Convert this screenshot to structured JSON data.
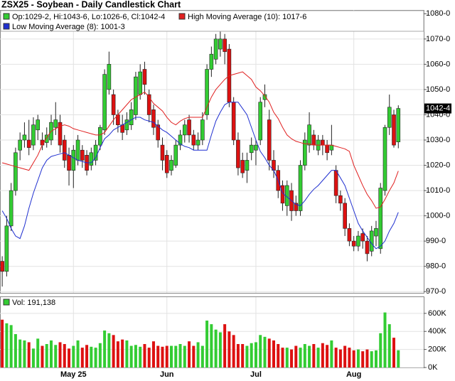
{
  "chart_data": {
    "type": "candlestick",
    "title": "ZSX25 - Soybean - Daily Candlestick Chart",
    "ohlc_label": "Op:1029-2, Hi:1043-6, Lo:1026-6, Cl:1042-4",
    "last_price_label": "1042-4",
    "up_color": "#33cc33",
    "down_color": "#dd1111",
    "grid": true,
    "categories": [
      null,
      null,
      null,
      null,
      null,
      null,
      null,
      null,
      null,
      null,
      null,
      null,
      null,
      null,
      null,
      null,
      "May 25",
      null,
      null,
      null,
      null,
      null,
      null,
      null,
      null,
      null,
      null,
      null,
      null,
      null,
      null,
      null,
      null,
      null,
      null,
      null,
      null,
      "Jun",
      null,
      null,
      null,
      null,
      null,
      null,
      null,
      null,
      null,
      null,
      null,
      null,
      null,
      null,
      null,
      null,
      null,
      null,
      null,
      "Jul",
      null,
      null,
      null,
      null,
      null,
      null,
      null,
      null,
      null,
      null,
      null,
      null,
      null,
      null,
      null,
      null,
      null,
      null,
      null,
      null,
      null,
      "Aug",
      null,
      null,
      null,
      null,
      null,
      null,
      null,
      null,
      null,
      null
    ],
    "open": [
      982,
      978,
      996,
      1010,
      1026,
      1030,
      1030,
      1028,
      1034,
      1030,
      1029,
      1030,
      1035,
      1037,
      1030,
      1024,
      1018,
      1022,
      1026,
      1024,
      1020,
      1022,
      1028,
      1034,
      1050,
      1048,
      1040,
      1036,
      1034,
      1036,
      1040,
      1048,
      1058,
      1048,
      1042,
      1036,
      1028,
      1024,
      1018,
      1020,
      1028,
      1032,
      1038,
      1032,
      1028,
      1030,
      1040,
      1058,
      1062,
      1066,
      1070,
      1066,
      1045,
      1030,
      1022,
      1018,
      1025,
      1026,
      1030,
      1046,
      1038,
      1022,
      1018,
      1012,
      1004,
      1010,
      1005,
      1002,
      1020,
      1028,
      1032,
      1026,
      1030,
      1028,
      1026,
      1018,
      1008,
      1005,
      995,
      990,
      988,
      993,
      990,
      986,
      992,
      987,
      1010,
      1035,
      1040,
      1029.25
    ],
    "high": [
      984,
      1000,
      1013,
      1027,
      1033,
      1037,
      1038,
      1039,
      1040,
      1033,
      1035,
      1040,
      1045,
      1040,
      1032,
      1027,
      1028,
      1032,
      1028,
      1026,
      1027,
      1030,
      1036,
      1058,
      1065,
      1050,
      1042,
      1040,
      1041,
      1045,
      1057,
      1060,
      1061,
      1050,
      1044,
      1038,
      1031,
      1026,
      1024,
      1030,
      1034,
      1038,
      1040,
      1034,
      1033,
      1041,
      1060,
      1067,
      1072,
      1074,
      1072,
      1068,
      1047,
      1033,
      1025,
      1025,
      1031,
      1030,
      1047,
      1052,
      1042,
      1026,
      1020,
      1014,
      1014,
      1013,
      1008,
      1022,
      1033,
      1041,
      1034,
      1032,
      1032,
      1030,
      1036,
      1020,
      1010,
      1007,
      997,
      992,
      994,
      995,
      992,
      996,
      998,
      1013,
      1036,
      1048,
      1042,
      1043.75
    ],
    "low": [
      972,
      976,
      994,
      1008,
      1022,
      1027,
      1024,
      1026,
      1030,
      1026,
      1027,
      1028,
      1032,
      1025,
      1019,
      1012,
      1011,
      1020,
      1019,
      1016,
      1018,
      1020,
      1026,
      1032,
      1048,
      1036,
      1033,
      1030,
      1032,
      1034,
      1038,
      1046,
      1048,
      1037,
      1032,
      1027,
      1018,
      1015,
      1016,
      1019,
      1026,
      1029,
      1029,
      1026,
      1026,
      1028,
      1038,
      1055,
      1060,
      1063,
      1060,
      1043,
      1028,
      1016,
      1015,
      1013,
      1022,
      1020,
      1028,
      1043,
      1018,
      1015,
      1007,
      1002,
      1000,
      998,
      1000,
      1000,
      1018,
      1025,
      1026,
      1024,
      1024,
      1022,
      1024,
      1005,
      1002,
      992,
      988,
      986,
      986,
      987,
      982,
      984,
      988,
      985,
      1008,
      1032,
      1027,
      1026.75
    ],
    "close": [
      978,
      996,
      1010,
      1025,
      1030,
      1032,
      1027,
      1036,
      1038,
      1028,
      1032,
      1037,
      1038,
      1028,
      1022,
      1018,
      1026,
      1030,
      1022,
      1018,
      1025,
      1028,
      1035,
      1056,
      1060,
      1040,
      1036,
      1033,
      1038,
      1042,
      1055,
      1057,
      1052,
      1040,
      1035,
      1030,
      1022,
      1017,
      1022,
      1028,
      1032,
      1036,
      1032,
      1028,
      1030,
      1038,
      1058,
      1064,
      1070,
      1070,
      1065,
      1045,
      1030,
      1019,
      1017,
      1022,
      1028,
      1028,
      1045,
      1048,
      1022,
      1018,
      1010,
      1005,
      1012,
      1002,
      1002,
      1020,
      1030,
      1036,
      1028,
      1030,
      1028,
      1025,
      1028,
      1008,
      1005,
      995,
      990,
      988,
      992,
      990,
      985,
      994,
      995,
      1011,
      1035,
      1043,
      1028,
      1042.5
    ],
    "series": [
      {
        "name": "High Moving Average (10): 1017-6",
        "color": "#e02020",
        "values": [
          1021,
          1020.5,
          1020,
          1019.5,
          1019,
          1018.5,
          1018,
          1021,
          1024,
          1028,
          1031,
          1033.5,
          1034.5,
          1035.5,
          1036,
          1035.5,
          1034.5,
          1034,
          1033.5,
          1033,
          1032.5,
          1032,
          1032,
          1033,
          1035.5,
          1038,
          1040,
          1042,
          1044,
          1046,
          1047,
          1048,
          1049,
          1047,
          1044.5,
          1043,
          1041.5,
          1039,
          1037,
          1036,
          1037.5,
          1038.5,
          1039,
          1039,
          1039,
          1039,
          1043,
          1047,
          1050,
          1052,
          1054,
          1055.5,
          1056,
          1056.5,
          1057,
          1055.5,
          1054,
          1051,
          1049.5,
          1047.5,
          1045,
          1041,
          1038.5,
          1035,
          1032,
          1030.5,
          1029.5,
          1029,
          1028.5,
          1028.5,
          1028,
          1028,
          1028,
          1028,
          1028,
          1027.5,
          1027,
          1026.5,
          1025.5,
          1020,
          1016,
          1012,
          1008.5,
          1006,
          1003,
          1003.5,
          1006.5,
          1010,
          1013,
          1017.75
        ]
      },
      {
        "name": "Low Moving Average (8): 1001-3",
        "color": "#1f2fd0",
        "values": [
          1002,
          999,
          995,
          992,
          991,
          996,
          1003,
          1009,
          1014,
          1019,
          1022,
          1023.5,
          1024,
          1024.5,
          1025,
          1024,
          1023,
          1022,
          1021.5,
          1021,
          1021,
          1023,
          1027,
          1030.5,
          1032,
          1034,
          1035,
          1036,
          1037,
          1038,
          1039,
          1039,
          1038,
          1037.5,
          1037,
          1035.5,
          1034,
          1033,
          1031.5,
          1030,
          1028.5,
          1027.5,
          1027,
          1026,
          1026,
          1026,
          1026,
          1032,
          1037.5,
          1041,
          1044,
          1045,
          1045,
          1045,
          1042.5,
          1040,
          1035,
          1030,
          1025.5,
          1023,
          1020,
          1018,
          1014,
          1009,
          1007.5,
          1006,
          1004.5,
          1004,
          1006,
          1008.5,
          1010.5,
          1012,
          1014,
          1016,
          1018,
          1018,
          1015,
          1012,
          1007,
          1002,
          997,
          994,
          991.5,
          989,
          987,
          988,
          990,
          994,
          997,
          1001.375
        ]
      }
    ],
    "ylim": [
      969.5,
      1081.5
    ],
    "yticks": [
      {
        "value": 1080,
        "label": "1080-0"
      },
      {
        "value": 1070,
        "label": "1070-0"
      },
      {
        "value": 1060,
        "label": "1060-0"
      },
      {
        "value": 1050,
        "label": "1050-0"
      },
      {
        "value": 1040,
        "label": "1040-0"
      },
      {
        "value": 1030,
        "label": "1030-0"
      },
      {
        "value": 1020,
        "label": "1020-0"
      },
      {
        "value": 1010,
        "label": "1010-0"
      },
      {
        "value": 1000,
        "label": "1000-0"
      },
      {
        "value": 990,
        "label": "990-0"
      },
      {
        "value": 980,
        "label": "980-0"
      },
      {
        "value": 970,
        "label": "970-0"
      }
    ],
    "volume": {
      "label": "Vol: 191,138",
      "values": [
        530000,
        490000,
        470000,
        370000,
        310000,
        300000,
        280000,
        210000,
        320000,
        240000,
        260000,
        300000,
        250000,
        280000,
        260000,
        210000,
        240000,
        300000,
        220000,
        250000,
        230000,
        220000,
        270000,
        410000,
        380000,
        360000,
        290000,
        310000,
        300000,
        240000,
        250000,
        230000,
        260000,
        220000,
        290000,
        240000,
        230000,
        240000,
        240000,
        240000,
        260000,
        240000,
        290000,
        240000,
        280000,
        240000,
        520000,
        480000,
        420000,
        390000,
        480000,
        400000,
        360000,
        260000,
        260000,
        240000,
        270000,
        280000,
        360000,
        340000,
        320000,
        300000,
        260000,
        220000,
        220000,
        200000,
        240000,
        220000,
        260000,
        240000,
        260000,
        220000,
        270000,
        250000,
        300000,
        220000,
        200000,
        240000,
        220000,
        190000,
        200000,
        180000,
        200000,
        180000,
        190000,
        380000,
        610000,
        480000,
        330000,
        191138
      ],
      "ylim": [
        0,
        780000
      ],
      "yticks": [
        {
          "value": 0,
          "label": "0K"
        },
        {
          "value": 200000,
          "label": "200K"
        },
        {
          "value": 400000,
          "label": "400K"
        },
        {
          "value": 600000,
          "label": "600K"
        }
      ]
    }
  }
}
